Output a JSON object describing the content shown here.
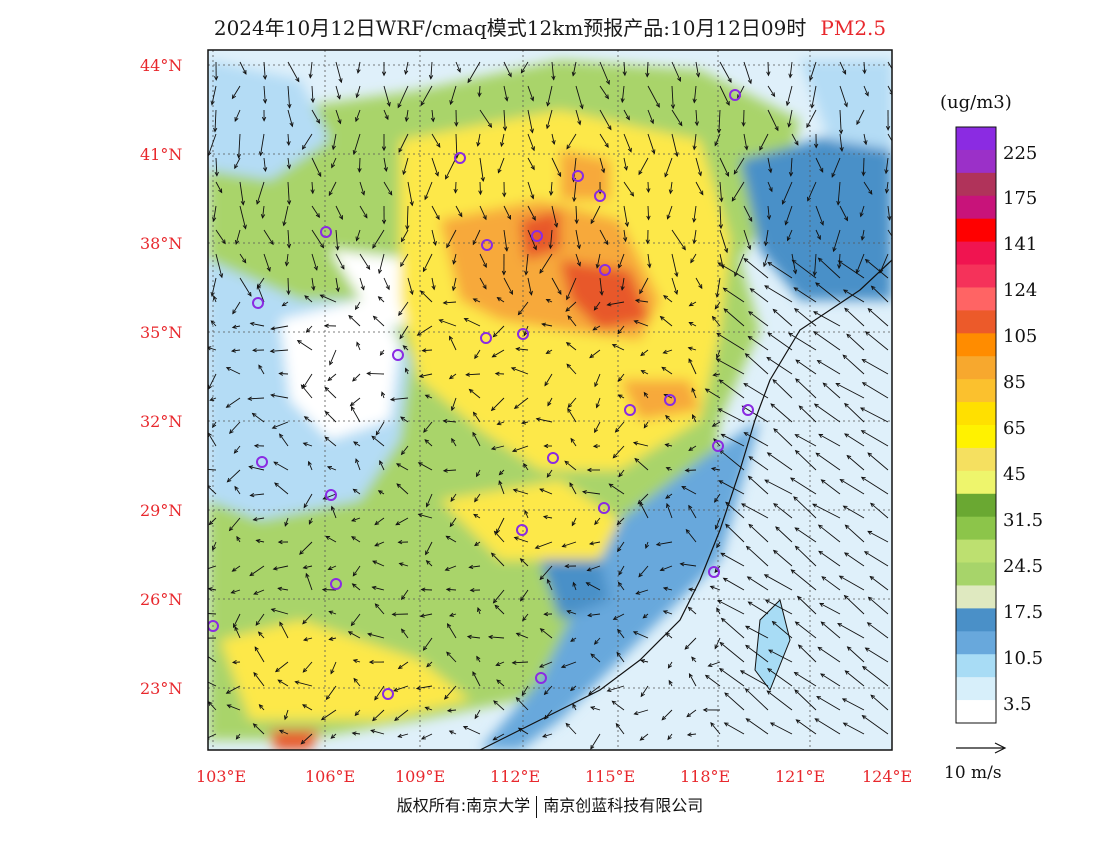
{
  "title": {
    "main": "2024年10月12日WRF/cmaq模式12km预报产品:10月12日09时",
    "pollutant": "PM2.5"
  },
  "map": {
    "lat_labels": [
      "44°N",
      "41°N",
      "38°N",
      "35°N",
      "32°N",
      "29°N",
      "26°N",
      "23°N"
    ],
    "lon_labels": [
      "103°E",
      "106°E",
      "109°E",
      "112°E",
      "115°E",
      "118°E",
      "121°E",
      "124°E"
    ],
    "colors": {
      "sea_light": "#dff0fa",
      "low_blue": "#b4dcf5",
      "mid_blue": "#4a90c8",
      "green_light": "#c3df78",
      "green": "#8cc14a",
      "yellow": "#fde84a",
      "orange": "#f7a93a",
      "red_orange": "#e8582b",
      "city_marker": "#8a2be2"
    }
  },
  "legend": {
    "unit": "(ug/m3)",
    "levels": [
      "225",
      "175",
      "141",
      "124",
      "105",
      "85",
      "65",
      "45",
      "31.5",
      "24.5",
      "17.5",
      "10.5",
      "3.5"
    ],
    "bins": [
      {
        "color": "#8b2be2"
      },
      {
        "color": "#9b30c8"
      },
      {
        "color": "#b0335a"
      },
      {
        "color": "#c8137a"
      },
      {
        "color": "#ff0000"
      },
      {
        "color": "#f01450"
      },
      {
        "color": "#f5325a"
      },
      {
        "color": "#ff6464"
      },
      {
        "color": "#ec5a2a"
      },
      {
        "color": "#ff8c00"
      },
      {
        "color": "#f7a82e"
      },
      {
        "color": "#fbc12e"
      },
      {
        "color": "#ffe000"
      },
      {
        "color": "#fff200"
      },
      {
        "color": "#f5e060"
      },
      {
        "color": "#eef56c"
      },
      {
        "color": "#6aa832"
      },
      {
        "color": "#8cc54a"
      },
      {
        "color": "#bde070"
      },
      {
        "color": "#a7d46a"
      },
      {
        "color": "#dfe9c0"
      },
      {
        "color": "#4a90c8"
      },
      {
        "color": "#68a8dc"
      },
      {
        "color": "#a8dcf5"
      },
      {
        "color": "#d7effa"
      },
      {
        "color": "#ffffff"
      }
    ],
    "wind_scale": "10 m/s"
  },
  "footer": {
    "left": "版权所有:南京大学",
    "right": "南京创蓝科技有限公司"
  }
}
